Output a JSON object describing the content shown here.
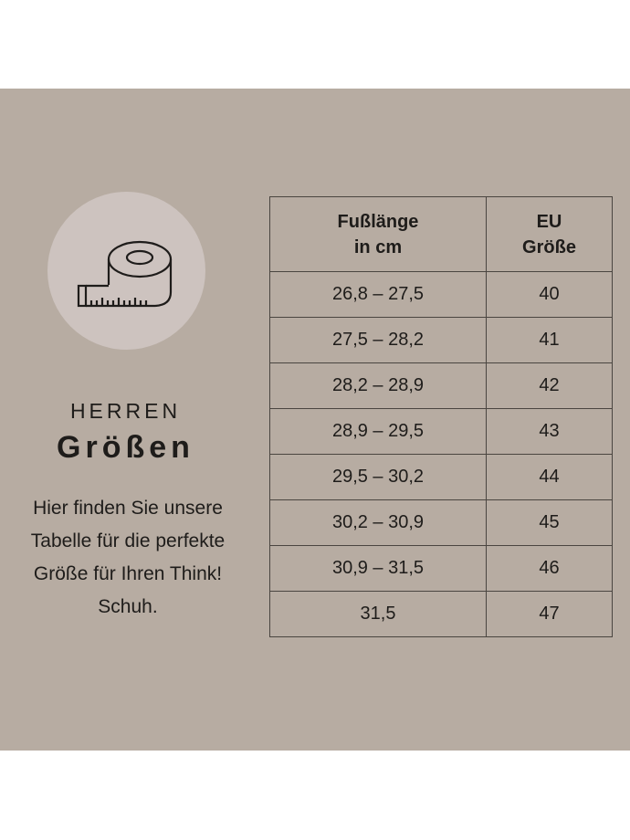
{
  "icon": "measuring-tape-icon",
  "colors": {
    "background": "#b7aca2",
    "circle": "#cdc3bf",
    "text": "#1e1c1a"
  },
  "kicker": "HERREN",
  "title": "Größen",
  "description": "Hier finden Sie unsere Tabelle für die perfekte Größe für Ihren Think! Schuh.",
  "table": {
    "headers": [
      "Fußlänge in cm",
      "EU Größe"
    ],
    "rows": [
      [
        "26,8 – 27,5",
        "40"
      ],
      [
        "27,5 – 28,2",
        "41"
      ],
      [
        "28,2 – 28,9",
        "42"
      ],
      [
        "28,9 – 29,5",
        "43"
      ],
      [
        "29,5 – 30,2",
        "44"
      ],
      [
        "30,2 – 30,9",
        "45"
      ],
      [
        "30,9 – 31,5",
        "46"
      ],
      [
        "31,5",
        "47"
      ]
    ]
  }
}
